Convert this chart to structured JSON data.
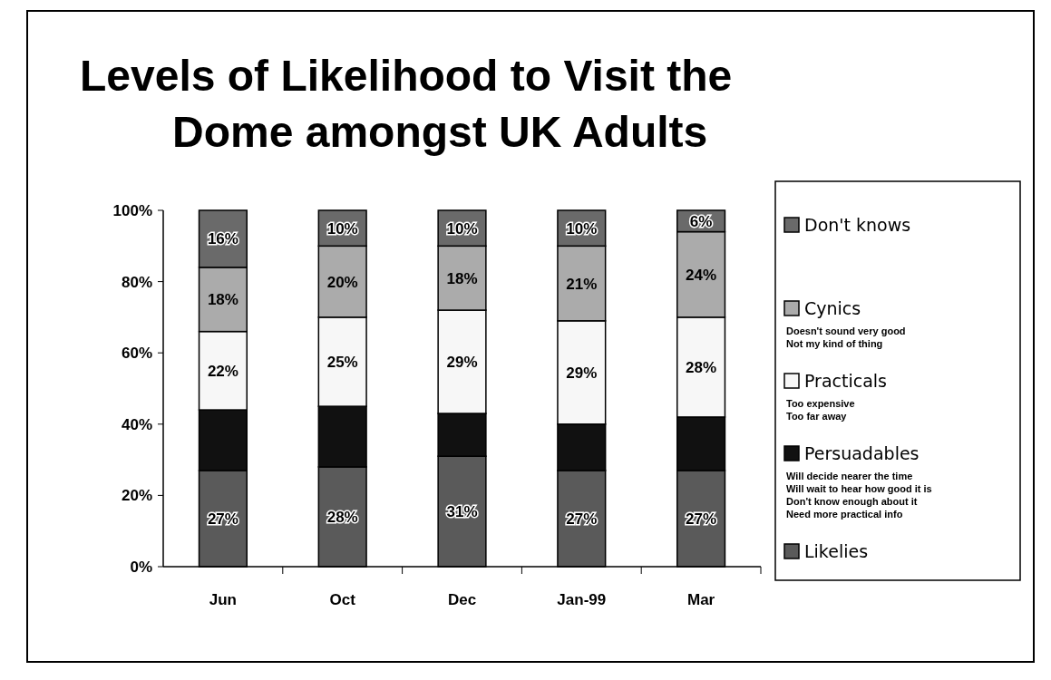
{
  "chart_data": {
    "type": "bar",
    "stacked": true,
    "title": "Levels of Likelihood to Visit the Dome amongst UK Adults",
    "categories": [
      "Jun",
      "Oct",
      "Dec",
      "Jan-99",
      "Mar"
    ],
    "series": [
      {
        "name": "Likelies",
        "color": "#5a5a5a",
        "values": [
          27,
          28,
          31,
          27,
          27
        ],
        "value_labels": [
          "27%",
          "28%",
          "31%",
          "27%",
          "27%"
        ]
      },
      {
        "name": "Persuadables",
        "color": "#111111",
        "values": [
          17,
          17,
          12,
          13,
          15
        ],
        "value_labels": [
          null,
          null,
          null,
          null,
          null
        ]
      },
      {
        "name": "Practicals",
        "color": "#f7f7f7",
        "values": [
          22,
          25,
          29,
          29,
          28
        ],
        "value_labels": [
          "22%",
          "25%",
          "29%",
          "29%",
          "28%"
        ]
      },
      {
        "name": "Cynics",
        "color": "#ababab",
        "values": [
          18,
          20,
          18,
          21,
          24
        ],
        "value_labels": [
          "18%",
          "20%",
          "18%",
          "21%",
          "24%"
        ]
      },
      {
        "name": "Don't knows",
        "color": "#6a6a6a",
        "values": [
          16,
          10,
          10,
          10,
          6
        ],
        "value_labels": [
          "16%",
          "10%",
          "10%",
          "10%",
          "6%"
        ]
      }
    ],
    "ylim": [
      0,
      100
    ],
    "yticks": [
      {
        "value": 0,
        "label": "0%"
      },
      {
        "value": 20,
        "label": "20%"
      },
      {
        "value": 40,
        "label": "40%"
      },
      {
        "value": 60,
        "label": "60%"
      },
      {
        "value": 80,
        "label": "80%"
      },
      {
        "value": 100,
        "label": "100%"
      }
    ],
    "grid": false,
    "legend": "right",
    "annotations": [
      "Doesn't sound very good",
      "Not my kind of thing",
      "Too expensive",
      "Too far away",
      "Will decide nearer the time",
      "Will wait to hear how good it is",
      "Don't know enough about it",
      "Need more practical info"
    ]
  }
}
